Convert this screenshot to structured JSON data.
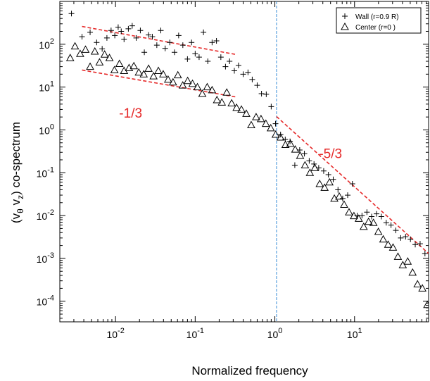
{
  "chart_data": {
    "type": "scatter",
    "xscale": "log",
    "yscale": "log",
    "xlim": [
      0.002,
      85
    ],
    "ylim": [
      3.3e-05,
      1000
    ],
    "grid": false,
    "xlabel": "Normalized frequency",
    "ylabel": {
      "base": "(v",
      "sub1": "θ",
      "mid": " v",
      "sub2": "z",
      "end": ") co-spectrum"
    },
    "xticks": [
      {
        "value": 0.01,
        "mant": "10",
        "exp": "-2"
      },
      {
        "value": 0.1,
        "mant": "10",
        "exp": "-1"
      },
      {
        "value": 1,
        "mant": "10",
        "exp": "0"
      },
      {
        "value": 10,
        "mant": "10",
        "exp": "1"
      }
    ],
    "yticks": [
      {
        "value": 100,
        "mant": "10",
        "exp": "2"
      },
      {
        "value": 10,
        "mant": "10",
        "exp": "1"
      },
      {
        "value": 1,
        "mant": "10",
        "exp": "0"
      },
      {
        "value": 0.1,
        "mant": "10",
        "exp": "-1"
      },
      {
        "value": 0.01,
        "mant": "10",
        "exp": "-2"
      },
      {
        "value": 0.001,
        "mant": "10",
        "exp": "-3"
      },
      {
        "value": 0.0001,
        "mant": "10",
        "exp": "-4"
      }
    ],
    "legend": {
      "placement": "top-right",
      "entries": [
        {
          "marker": "plus",
          "label": "Wall (r=0.9 R)"
        },
        {
          "marker": "triangle",
          "label": "Center (r=0 )"
        }
      ]
    },
    "series": [
      {
        "name": "Wall (r=0.9 R)",
        "marker": "plus",
        "color": "#000000",
        "x": [
          0.0028,
          0.0038,
          0.0048,
          0.0058,
          0.0068,
          0.0078,
          0.0088,
          0.0098,
          0.0108,
          0.0118,
          0.0128,
          0.0145,
          0.0162,
          0.0182,
          0.0205,
          0.023,
          0.026,
          0.029,
          0.033,
          0.037,
          0.042,
          0.048,
          0.055,
          0.062,
          0.07,
          0.08,
          0.09,
          0.1,
          0.112,
          0.127,
          0.144,
          0.163,
          0.185,
          0.21,
          0.24,
          0.27,
          0.31,
          0.35,
          0.4,
          0.46,
          0.52,
          0.6,
          0.68,
          0.78,
          0.9,
          1.02,
          1.18,
          1.35,
          1.55,
          1.78,
          2.05,
          2.35,
          2.7,
          3.1,
          3.55,
          4.1,
          4.7,
          5.4,
          6.2,
          7.1,
          8.2,
          9.4,
          10.8,
          12.4,
          14.3,
          16.4,
          18.9,
          21.7,
          25,
          28.7,
          33,
          38,
          43.7,
          50.3,
          57.8,
          66.5,
          76.5
        ],
        "y": [
          520,
          150,
          190,
          110,
          78,
          140,
          210,
          160,
          250,
          200,
          130,
          230,
          270,
          140,
          210,
          65,
          165,
          150,
          95,
          210,
          80,
          110,
          65,
          160,
          95,
          45,
          110,
          60,
          50,
          190,
          40,
          110,
          120,
          50,
          30,
          40,
          24,
          32,
          20,
          22,
          15,
          11,
          7,
          6.8,
          3.5,
          1.4,
          0.78,
          0.6,
          0.54,
          0.15,
          0.34,
          0.28,
          0.19,
          0.16,
          0.13,
          0.11,
          0.09,
          0.07,
          0.04,
          0.025,
          0.03,
          0.055,
          0.01,
          0.01,
          0.012,
          0.0095,
          0.011,
          0.0095,
          0.0068,
          0.006,
          0.0045,
          0.003,
          0.0032,
          0.0028,
          0.0021,
          0.0022,
          0.0013
        ]
      },
      {
        "name": "Center (r=0 )",
        "marker": "triangle",
        "color": "#000000",
        "x": [
          0.0027,
          0.0031,
          0.0036,
          0.0042,
          0.0048,
          0.0055,
          0.0063,
          0.0073,
          0.0084,
          0.0097,
          0.0112,
          0.0128,
          0.0148,
          0.017,
          0.0196,
          0.0226,
          0.026,
          0.03,
          0.0345,
          0.0397,
          0.0457,
          0.0527,
          0.0606,
          0.0698,
          0.0804,
          0.0926,
          0.1067,
          0.1228,
          0.1415,
          0.163,
          0.1877,
          0.2162,
          0.249,
          0.2868,
          0.3304,
          0.3805,
          0.4382,
          0.5048,
          0.5814,
          0.6697,
          0.7713,
          0.8884,
          1.023,
          1.179,
          1.358,
          1.564,
          1.801,
          2.075,
          2.39,
          2.752,
          3.17,
          3.651,
          4.206,
          4.844,
          5.579,
          6.426,
          7.402,
          8.526,
          9.82,
          11.31,
          13.03,
          15,
          17.28,
          19.91,
          22.93,
          26.41,
          30.42,
          35.03,
          40.35,
          46.48,
          53.53,
          61.66,
          71.02,
          81.8
        ],
        "y": [
          48,
          90,
          60,
          75,
          30,
          68,
          38,
          58,
          48,
          25,
          35,
          24,
          28,
          31,
          22,
          20,
          27,
          18,
          24,
          20,
          15,
          13,
          19,
          11,
          14,
          12,
          10,
          7,
          10,
          8.5,
          5,
          4.4,
          7.5,
          4.2,
          3.3,
          3,
          2.4,
          1.3,
          2,
          1.8,
          1.4,
          1.1,
          0.78,
          0.67,
          0.45,
          0.48,
          0.35,
          0.25,
          0.15,
          0.1,
          0.13,
          0.055,
          0.045,
          0.06,
          0.025,
          0.028,
          0.018,
          0.012,
          0.0098,
          0.0085,
          0.0055,
          0.0072,
          0.0068,
          0.0042,
          0.0028,
          0.0021,
          0.0018,
          0.0011,
          0.0007,
          0.00085,
          0.00047,
          0.00025,
          0.0002,
          8.26e-05
        ]
      }
    ],
    "fit_lines": [
      {
        "name": "upper -1/3 fit",
        "x": [
          0.0038,
          0.32
        ],
        "y": [
          260,
          58
        ],
        "color": "#e62a2a",
        "style": "dashed"
      },
      {
        "name": "lower -1/3 fit",
        "x": [
          0.0038,
          0.32
        ],
        "y": [
          25,
          5.9
        ],
        "color": "#e62a2a",
        "style": "dashed"
      },
      {
        "name": "-5/3 fit",
        "x": [
          1.05,
          85
        ],
        "y": [
          2.05,
          0.0013
        ],
        "color": "#e62a2a",
        "style": "dashed"
      }
    ],
    "reference_line": {
      "x": 1.05,
      "color": "#3a8fd8",
      "style": "dashed"
    },
    "annotations": [
      {
        "text": "-1/3",
        "x": 0.0155,
        "y": 1.95,
        "color": "#e62a2a"
      },
      {
        "text": "-5/3",
        "x": 5.0,
        "y": 0.22,
        "color": "#e62a2a"
      }
    ]
  }
}
